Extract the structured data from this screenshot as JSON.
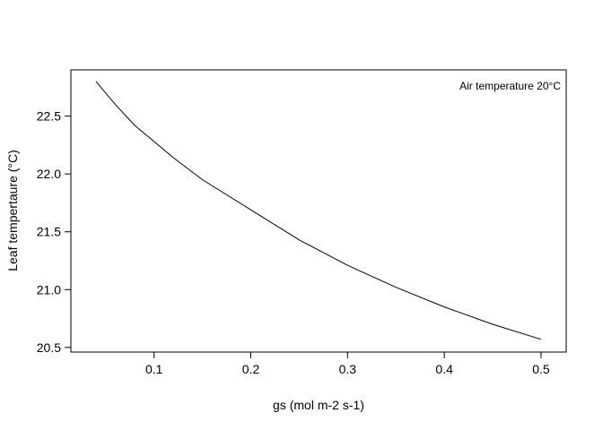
{
  "chart_data": {
    "type": "line",
    "xlabel": "gs (mol m-2 s-1)",
    "ylabel": "Leaf tempertaure (°C)",
    "annotation": "Air temperature 20°C",
    "legend_position": "top-right",
    "grid": false,
    "xlim": [
      0.014,
      0.526
    ],
    "ylim": [
      20.46,
      22.9
    ],
    "x_ticks": [
      0.1,
      0.2,
      0.3,
      0.4,
      0.5
    ],
    "x_tick_labels": [
      "0.1",
      "0.2",
      "0.3",
      "0.4",
      "0.5"
    ],
    "y_ticks": [
      20.5,
      21.0,
      21.5,
      22.0,
      22.5
    ],
    "y_tick_labels": [
      "20.5",
      "21.0",
      "21.5",
      "22.0",
      "22.5"
    ],
    "series": [
      {
        "x": [
          0.04,
          0.06,
          0.08,
          0.1,
          0.12,
          0.15,
          0.2,
          0.25,
          0.3,
          0.35,
          0.4,
          0.45,
          0.5
        ],
        "y": [
          22.8,
          22.6,
          22.42,
          22.28,
          22.14,
          21.95,
          21.69,
          21.43,
          21.21,
          21.02,
          20.85,
          20.7,
          20.57
        ]
      }
    ]
  }
}
